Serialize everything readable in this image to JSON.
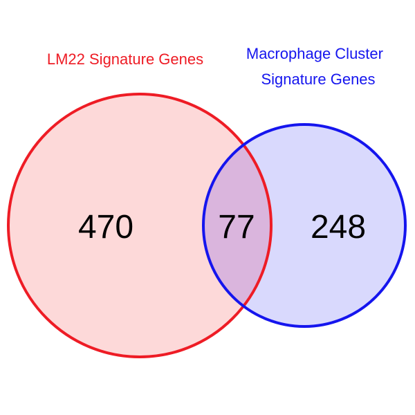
{
  "venn": {
    "sets": [
      {
        "name_lines": [
          "LM22 Signature Genes"
        ],
        "color": "#ee1c25",
        "fill": "#fdd9d9",
        "exclusive_count": "470"
      },
      {
        "name_lines": [
          "Macrophage Cluster",
          "Signature Genes"
        ],
        "color": "#1515ee",
        "fill": "#d9d9fd",
        "exclusive_count": "248"
      }
    ],
    "intersection_count": "77",
    "intersection_fill": "#dab5dd"
  }
}
